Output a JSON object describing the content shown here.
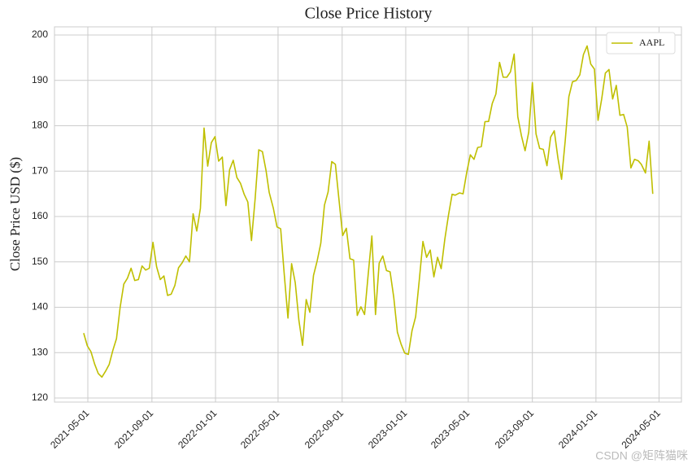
{
  "chart_data": {
    "type": "line",
    "title": "Close Price History",
    "ylabel": "Close Price USD ($)",
    "watermark": "CSDN @矩阵猫咪",
    "legend": "upper right",
    "grid": true,
    "xlim": [
      "2021-02-26",
      "2024-06-13"
    ],
    "xticks": [
      "2021-05-01",
      "2021-09-01",
      "2022-01-01",
      "2022-05-01",
      "2022-09-01",
      "2023-01-01",
      "2023-05-01",
      "2023-09-01",
      "2024-01-01",
      "2024-05-01"
    ],
    "ylim": [
      119.1,
      201.8
    ],
    "yticks": [
      120,
      130,
      140,
      150,
      160,
      170,
      180,
      190,
      200
    ],
    "x": [
      "2021-04-23",
      "2021-04-30",
      "2021-05-07",
      "2021-05-14",
      "2021-05-21",
      "2021-05-28",
      "2021-06-04",
      "2021-06-11",
      "2021-06-18",
      "2021-06-25",
      "2021-07-02",
      "2021-07-09",
      "2021-07-16",
      "2021-07-23",
      "2021-07-30",
      "2021-08-06",
      "2021-08-13",
      "2021-08-20",
      "2021-08-27",
      "2021-09-03",
      "2021-09-10",
      "2021-09-17",
      "2021-09-24",
      "2021-10-01",
      "2021-10-08",
      "2021-10-15",
      "2021-10-22",
      "2021-10-29",
      "2021-11-05",
      "2021-11-12",
      "2021-11-19",
      "2021-11-26",
      "2021-12-03",
      "2021-12-10",
      "2021-12-17",
      "2021-12-24",
      "2021-12-31",
      "2022-01-07",
      "2022-01-14",
      "2022-01-21",
      "2022-01-28",
      "2022-02-04",
      "2022-02-11",
      "2022-02-18",
      "2022-02-25",
      "2022-03-04",
      "2022-03-11",
      "2022-03-18",
      "2022-03-25",
      "2022-04-01",
      "2022-04-08",
      "2022-04-14",
      "2022-04-22",
      "2022-04-29",
      "2022-05-06",
      "2022-05-13",
      "2022-05-20",
      "2022-05-27",
      "2022-06-03",
      "2022-06-10",
      "2022-06-17",
      "2022-06-24",
      "2022-07-01",
      "2022-07-08",
      "2022-07-15",
      "2022-07-22",
      "2022-07-29",
      "2022-08-05",
      "2022-08-12",
      "2022-08-19",
      "2022-08-26",
      "2022-09-02",
      "2022-09-09",
      "2022-09-16",
      "2022-09-23",
      "2022-09-30",
      "2022-10-07",
      "2022-10-14",
      "2022-10-21",
      "2022-10-28",
      "2022-11-04",
      "2022-11-11",
      "2022-11-18",
      "2022-11-25",
      "2022-12-02",
      "2022-12-09",
      "2022-12-16",
      "2022-12-23",
      "2022-12-30",
      "2023-01-06",
      "2023-01-13",
      "2023-01-20",
      "2023-01-27",
      "2023-02-03",
      "2023-02-10",
      "2023-02-17",
      "2023-02-24",
      "2023-03-03",
      "2023-03-10",
      "2023-03-17",
      "2023-03-24",
      "2023-03-31",
      "2023-04-06",
      "2023-04-14",
      "2023-04-21",
      "2023-04-28",
      "2023-05-05",
      "2023-05-12",
      "2023-05-19",
      "2023-05-26",
      "2023-06-02",
      "2023-06-09",
      "2023-06-16",
      "2023-06-23",
      "2023-06-30",
      "2023-07-07",
      "2023-07-14",
      "2023-07-21",
      "2023-07-28",
      "2023-08-04",
      "2023-08-11",
      "2023-08-18",
      "2023-08-25",
      "2023-09-01",
      "2023-09-08",
      "2023-09-15",
      "2023-09-22",
      "2023-09-29",
      "2023-10-06",
      "2023-10-13",
      "2023-10-20",
      "2023-10-27",
      "2023-11-03",
      "2023-11-10",
      "2023-11-17",
      "2023-11-24",
      "2023-12-01",
      "2023-12-08",
      "2023-12-15",
      "2023-12-22",
      "2023-12-29",
      "2024-01-05",
      "2024-01-12",
      "2024-01-19",
      "2024-01-26",
      "2024-02-02",
      "2024-02-09",
      "2024-02-16",
      "2024-02-23",
      "2024-03-01",
      "2024-03-08",
      "2024-03-15",
      "2024-03-22",
      "2024-03-28",
      "2024-04-05",
      "2024-04-12",
      "2024-04-19"
    ],
    "series": [
      {
        "name": "AAPL",
        "color": "#bfbf00",
        "values": [
          134.3,
          131.5,
          130.2,
          127.5,
          125.4,
          124.6,
          125.9,
          127.4,
          130.5,
          133.1,
          140,
          145.1,
          146.4,
          148.6,
          145.9,
          146.1,
          149.1,
          148.2,
          148.6,
          154.3,
          148.9,
          146.1,
          146.9,
          142.6,
          142.9,
          144.8,
          148.7,
          149.8,
          151.3,
          150,
          160.6,
          156.8,
          161.8,
          179.5,
          171.1,
          176.3,
          177.6,
          172.2,
          173.1,
          162.4,
          170.3,
          172.4,
          168.6,
          167.3,
          164.9,
          163.2,
          154.7,
          163.9,
          174.7,
          174.3,
          170.1,
          165.3,
          161.8,
          157.7,
          157.3,
          147.1,
          137.6,
          149.6,
          145.4,
          137.1,
          131.6,
          141.7,
          138.9,
          147,
          150.2,
          154.1,
          162.5,
          165.4,
          172.1,
          171.5,
          163.6,
          155.8,
          157.4,
          150.7,
          150.4,
          138.2,
          140.1,
          138.4,
          147.3,
          155.7,
          138.4,
          149.7,
          151.3,
          148.1,
          147.8,
          142.2,
          134.5,
          131.9,
          129.9,
          129.6,
          134.8,
          137.9,
          146,
          154.5,
          151,
          152.6,
          146.7,
          151,
          148.5,
          155,
          160.3,
          164.9,
          164.7,
          165.2,
          165,
          169.7,
          173.6,
          172.6,
          175.2,
          175.4,
          180.9,
          180.96,
          184.9,
          187,
          193.97,
          190.7,
          190.7,
          191.9,
          195.8,
          181.99,
          177.8,
          174.5,
          178.6,
          189.5,
          178.2,
          175,
          174.8,
          171.2,
          177.5,
          178.9,
          172.9,
          168.2,
          176.7,
          186.4,
          189.7,
          189.97,
          191.2,
          195.7,
          197.6,
          193.6,
          192.5,
          181.2,
          185.9,
          191.6,
          192.4,
          185.9,
          188.9,
          182.3,
          182.5,
          179.7,
          170.7,
          172.6,
          172.3,
          171.5,
          169.6,
          176.6,
          165
        ]
      }
    ]
  }
}
